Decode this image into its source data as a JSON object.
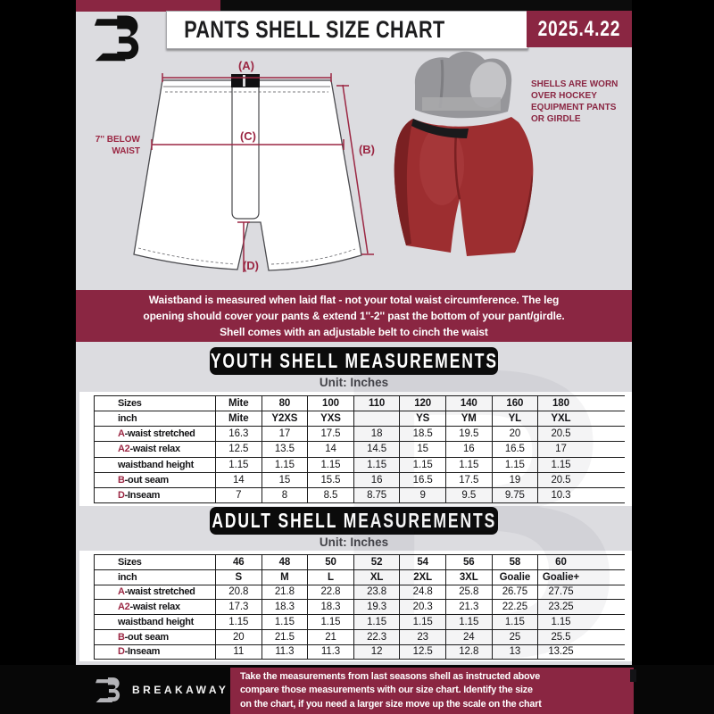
{
  "header": {
    "title": "PANTS SHELL SIZE CHART",
    "date": "2025.4.22"
  },
  "diagram": {
    "label_a": "(A)",
    "label_b": "(B)",
    "label_c": "(C)",
    "label_d": "(D)",
    "below_waist_line1": "7'' BELOW",
    "below_waist_line2": "WAIST",
    "note_lines": [
      "SHELLS ARE WORN",
      "OVER HOCKEY",
      "EQUIPMENT PANTS",
      "OR GIRDLE"
    ]
  },
  "info_banner": {
    "lines": [
      "Waistband is measured when laid flat - not your total waist circumference. The leg",
      "opening should cover your pants & extend 1''-2'' past the bottom of your pant/girdle.",
      "Shell comes with an adjustable belt to cinch the waist"
    ]
  },
  "youth_section": {
    "title": "YOUTH SHELL MEASUREMENTS",
    "unit": "Unit: Inches",
    "table": {
      "size_row_label": "Sizes",
      "code_row_label": "inch",
      "sizes": [
        "Mite",
        "80",
        "100",
        "110",
        "120",
        "140",
        "160",
        "180"
      ],
      "codes": [
        "Mite",
        "Y2XS",
        "YXS",
        "",
        "YS",
        "YM",
        "YL",
        "YXL"
      ],
      "rows": [
        {
          "prefix": "A",
          "label": "-waist stretched",
          "values": [
            "16.3",
            "17",
            "17.5",
            "18",
            "18.5",
            "19.5",
            "20",
            "20.5"
          ]
        },
        {
          "prefix": "A2",
          "label": "-waist relax",
          "values": [
            "12.5",
            "13.5",
            "14",
            "14.5",
            "15",
            "16",
            "16.5",
            "17"
          ]
        },
        {
          "prefix": "",
          "label": "waistband height",
          "values": [
            "1.15",
            "1.15",
            "1.15",
            "1.15",
            "1.15",
            "1.15",
            "1.15",
            "1.15"
          ]
        },
        {
          "prefix": "B",
          "label": "-out seam",
          "values": [
            "14",
            "15",
            "15.5",
            "16",
            "16.5",
            "17.5",
            "19",
            "20.5"
          ]
        },
        {
          "prefix": "D",
          "label": "-Inseam",
          "values": [
            "7",
            "8",
            "8.5",
            "8.75",
            "9",
            "9.5",
            "9.75",
            "10.3"
          ]
        }
      ]
    }
  },
  "adult_section": {
    "title": "ADULT SHELL MEASUREMENTS",
    "unit": "Unit: Inches",
    "table": {
      "size_row_label": "Sizes",
      "code_row_label": "inch",
      "sizes": [
        "46",
        "48",
        "50",
        "52",
        "54",
        "56",
        "58",
        "60"
      ],
      "codes": [
        "S",
        "M",
        "L",
        "XL",
        "2XL",
        "3XL",
        "Goalie",
        "Goalie+"
      ],
      "rows": [
        {
          "prefix": "A",
          "label": "-waist stretched",
          "values": [
            "20.8",
            "21.8",
            "22.8",
            "23.8",
            "24.8",
            "25.8",
            "26.75",
            "27.75"
          ]
        },
        {
          "prefix": "A2",
          "label": "-waist relax",
          "values": [
            "17.3",
            "18.3",
            "18.3",
            "19.3",
            "20.3",
            "21.3",
            "22.25",
            "23.25"
          ]
        },
        {
          "prefix": "",
          "label": "waistband height",
          "values": [
            "1.15",
            "1.15",
            "1.15",
            "1.15",
            "1.15",
            "1.15",
            "1.15",
            "1.15"
          ]
        },
        {
          "prefix": "B",
          "label": "-out seam",
          "values": [
            "20",
            "21.5",
            "21",
            "22.3",
            "23",
            "24",
            "25",
            "25.5"
          ]
        },
        {
          "prefix": "D",
          "label": "-Inseam",
          "values": [
            "11",
            "11.3",
            "11.3",
            "12",
            "12.5",
            "12.8",
            "13",
            "13.25"
          ]
        }
      ]
    }
  },
  "footer": {
    "brand": "BREAKAWAY",
    "lines": [
      "Take the measurements from last seasons shell as instructed above",
      "compare those measurements with our size chart. Identify the size",
      "on the chart, if you need a larger size move up the scale on the chart"
    ]
  },
  "watermark_letter": "B",
  "colors": {
    "accent_maroon": "#8A2642",
    "diagram_maroon": "#9B2743",
    "shell_red": "#9D2E30",
    "page_gray": "#dcdce0",
    "table_line": "#1b1b1b"
  }
}
